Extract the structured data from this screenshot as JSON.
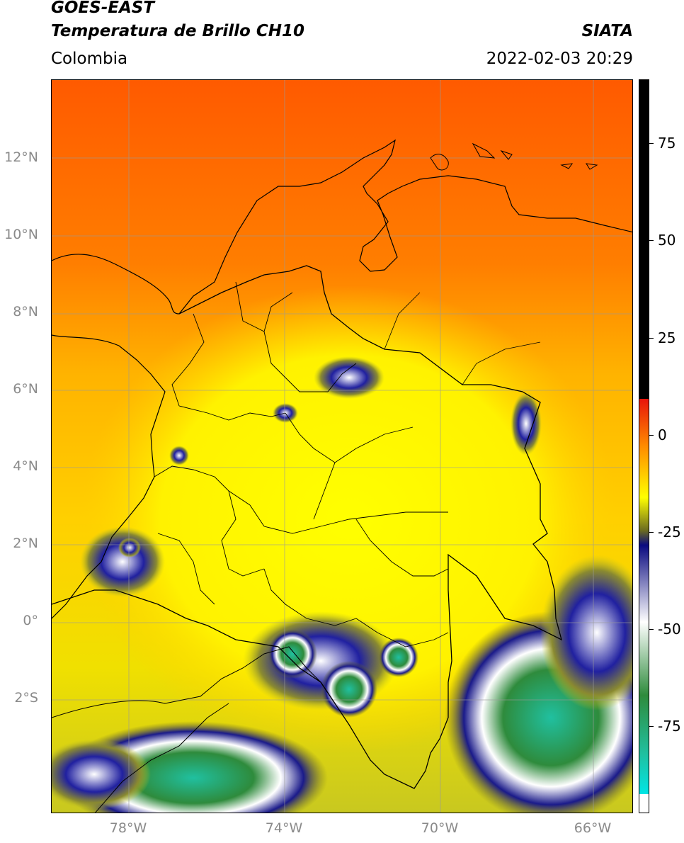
{
  "header": {
    "line1": "GOES-EAST",
    "line2": "Temperatura de Brillo CH10",
    "source": "SIATA",
    "region": "Colombia",
    "timestamp": "2022-02-03 20:29"
  },
  "axes": {
    "lat_labels": [
      "12°N",
      "10°N",
      "8°N",
      "6°N",
      "4°N",
      "2°N",
      "0°",
      "2°S"
    ],
    "lon_labels": [
      "78°W",
      "74°W",
      "70°W",
      "66°W"
    ]
  },
  "colorbar": {
    "labels": [
      "75",
      "50",
      "25",
      "0",
      "-25",
      "-50",
      "-75"
    ],
    "colors": {
      "black": "#000000",
      "red": "#e8140a",
      "orange": "#ff8c00",
      "yellow": "#ffff00",
      "olive": "#6b6b20",
      "navy": "#0a0a80",
      "white": "#ffffff",
      "green": "#2e8b3c",
      "teal": "#20c0a0",
      "cyan": "#00e5e5"
    }
  }
}
